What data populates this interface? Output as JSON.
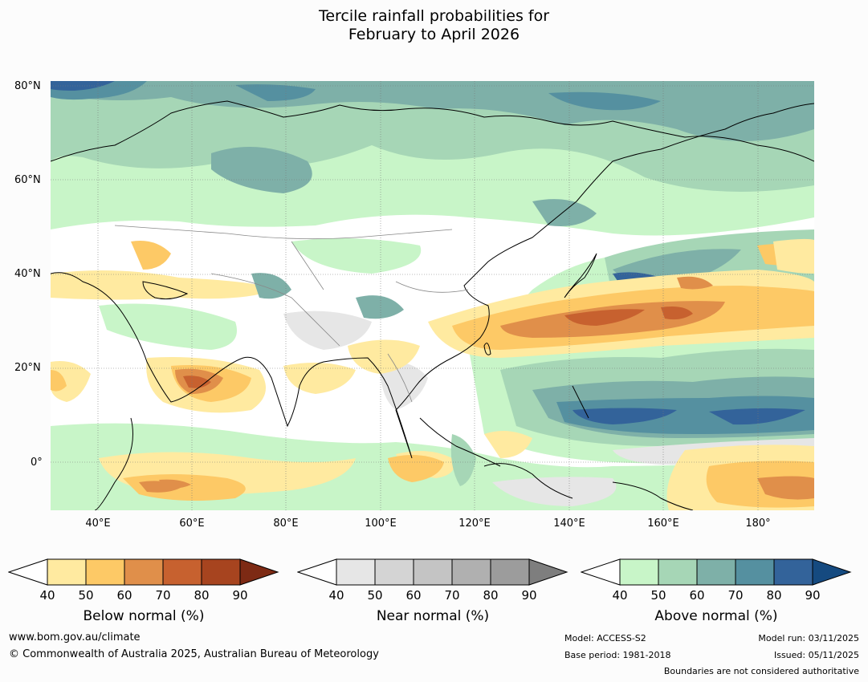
{
  "title": {
    "line1": "Tercile rainfall probabilities for",
    "line2": "February to April 2026"
  },
  "axes": {
    "lat_labels": [
      "80°N",
      "60°N",
      "40°N",
      "20°N",
      "0°"
    ],
    "lon_labels": [
      "40°E",
      "60°E",
      "80°E",
      "100°E",
      "120°E",
      "140°E",
      "160°E",
      "180°"
    ]
  },
  "colorbars": [
    {
      "name": "below",
      "label": "Below normal (%)",
      "ticks": [
        "40",
        "50",
        "60",
        "70",
        "80",
        "90"
      ],
      "colors": [
        "#ffffff",
        "#ffeaa0",
        "#fdc966",
        "#e08f4a",
        "#c7612f",
        "#a7441f",
        "#7d2a14"
      ]
    },
    {
      "name": "near",
      "label": "Near normal (%)",
      "ticks": [
        "40",
        "50",
        "60",
        "70",
        "80",
        "90"
      ],
      "colors": [
        "#ffffff",
        "#e6e6e6",
        "#d4d4d4",
        "#c4c4c4",
        "#b0b0b0",
        "#9c9c9c",
        "#7e7e7e"
      ]
    },
    {
      "name": "above",
      "label": "Above normal (%)",
      "ticks": [
        "40",
        "50",
        "60",
        "70",
        "80",
        "90"
      ],
      "colors": [
        "#ffffff",
        "#c8f5c8",
        "#a6d6b6",
        "#7eb0a8",
        "#5590a0",
        "#33639a",
        "#154a80"
      ]
    }
  ],
  "footer": {
    "url": "www.bom.gov.au/climate",
    "copyright": "© Commonwealth of Australia 2025, Australian Bureau of Meteorology",
    "model": "Model: ACCESS-S2",
    "base_period": "Base period: 1981-2018",
    "model_run": "Model run: 03/11/2025",
    "issued": "Issued: 05/11/2025",
    "disclaimer": "Boundaries are not considered authoritative"
  }
}
